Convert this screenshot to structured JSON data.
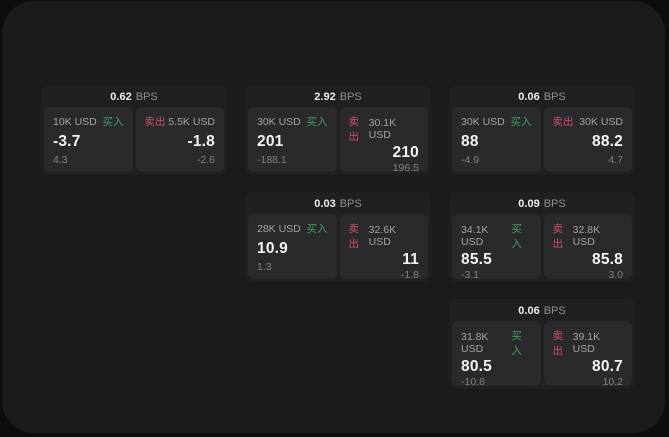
{
  "theme": {
    "window_bg": "#1b1b1c",
    "card_bg": "#202022",
    "panel_bg": "#2a2a2c",
    "buy_color": "#3fa065",
    "sell_color": "#cd4f66",
    "label_color": "#a3a3a6",
    "sub_color": "#808083",
    "muted_color": "#8f8f92"
  },
  "cards": [
    {
      "bps_value": "0.62",
      "bps_unit": "BPS",
      "buy": {
        "amount": "10K USD",
        "side_label": "买入",
        "price": "-3.7",
        "sub_value": "4.3"
      },
      "sell": {
        "amount": "5.5K USD",
        "side_label": "卖出",
        "price": "-1.8",
        "sub_value": "-2.6"
      }
    },
    {
      "bps_value": "2.92",
      "bps_unit": "BPS",
      "buy": {
        "amount": "30K USD",
        "side_label": "买入",
        "price": "201",
        "sub_value": "-188.1"
      },
      "sell": {
        "amount": "30.1K USD",
        "side_label": "卖出",
        "price": "210",
        "sub_value": "196.5"
      }
    },
    {
      "bps_value": "0.06",
      "bps_unit": "BPS",
      "buy": {
        "amount": "30K USD",
        "side_label": "买入",
        "price": "88",
        "sub_value": "-4.9"
      },
      "sell": {
        "amount": "30K USD",
        "side_label": "卖出",
        "price": "88.2",
        "sub_value": "4.7"
      }
    },
    {
      "bps_value": "0.03",
      "bps_unit": "BPS",
      "buy": {
        "amount": "28K USD",
        "side_label": "买入",
        "price": "10.9",
        "sub_value": "1.3"
      },
      "sell": {
        "amount": "32.6K USD",
        "side_label": "卖出",
        "price": "11",
        "sub_value": "-1.8"
      }
    },
    {
      "bps_value": "0.09",
      "bps_unit": "BPS",
      "buy": {
        "amount": "34.1K USD",
        "side_label": "买入",
        "price": "85.5",
        "sub_value": "-3.1"
      },
      "sell": {
        "amount": "32.8K USD",
        "side_label": "卖出",
        "price": "85.8",
        "sub_value": "3.0"
      }
    },
    {
      "bps_value": "0.06",
      "bps_unit": "BPS",
      "buy": {
        "amount": "31.8K USD",
        "side_label": "买入",
        "price": "80.5",
        "sub_value": "-10.8"
      },
      "sell": {
        "amount": "39.1K USD",
        "side_label": "卖出",
        "price": "80.7",
        "sub_value": "10.2"
      }
    }
  ]
}
